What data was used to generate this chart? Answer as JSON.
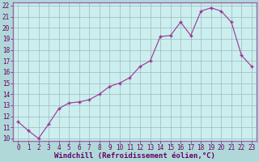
{
  "x": [
    0,
    1,
    2,
    3,
    4,
    5,
    6,
    7,
    8,
    9,
    10,
    11,
    12,
    13,
    14,
    15,
    16,
    17,
    18,
    19,
    20,
    21,
    22,
    23
  ],
  "y": [
    11.5,
    10.7,
    10.0,
    11.3,
    12.7,
    13.2,
    13.3,
    13.5,
    14.0,
    14.7,
    15.0,
    15.5,
    16.5,
    17.0,
    19.2,
    19.3,
    20.5,
    19.3,
    21.5,
    21.8,
    21.5,
    20.5,
    17.5,
    16.5
  ],
  "line_color": "#993399",
  "marker": "+",
  "marker_size": 3,
  "marker_lw": 1.0,
  "line_width": 0.8,
  "bg_color": "#b0d8d8",
  "plot_bg_color": "#cceeee",
  "grid_color": "#99bbbb",
  "xlabel": "Windchill (Refroidissement éolien,°C)",
  "xlim": [
    -0.5,
    23.5
  ],
  "ylim": [
    9.8,
    22.3
  ],
  "yticks": [
    10,
    11,
    12,
    13,
    14,
    15,
    16,
    17,
    18,
    19,
    20,
    21,
    22
  ],
  "xticks": [
    0,
    1,
    2,
    3,
    4,
    5,
    6,
    7,
    8,
    9,
    10,
    11,
    12,
    13,
    14,
    15,
    16,
    17,
    18,
    19,
    20,
    21,
    22,
    23
  ],
  "tick_label_size": 5.5,
  "xlabel_size": 6.5,
  "xlabel_color": "#660066",
  "tick_color": "#660066",
  "axis_bg_color": "#9966aa",
  "spine_color": "#9966aa"
}
